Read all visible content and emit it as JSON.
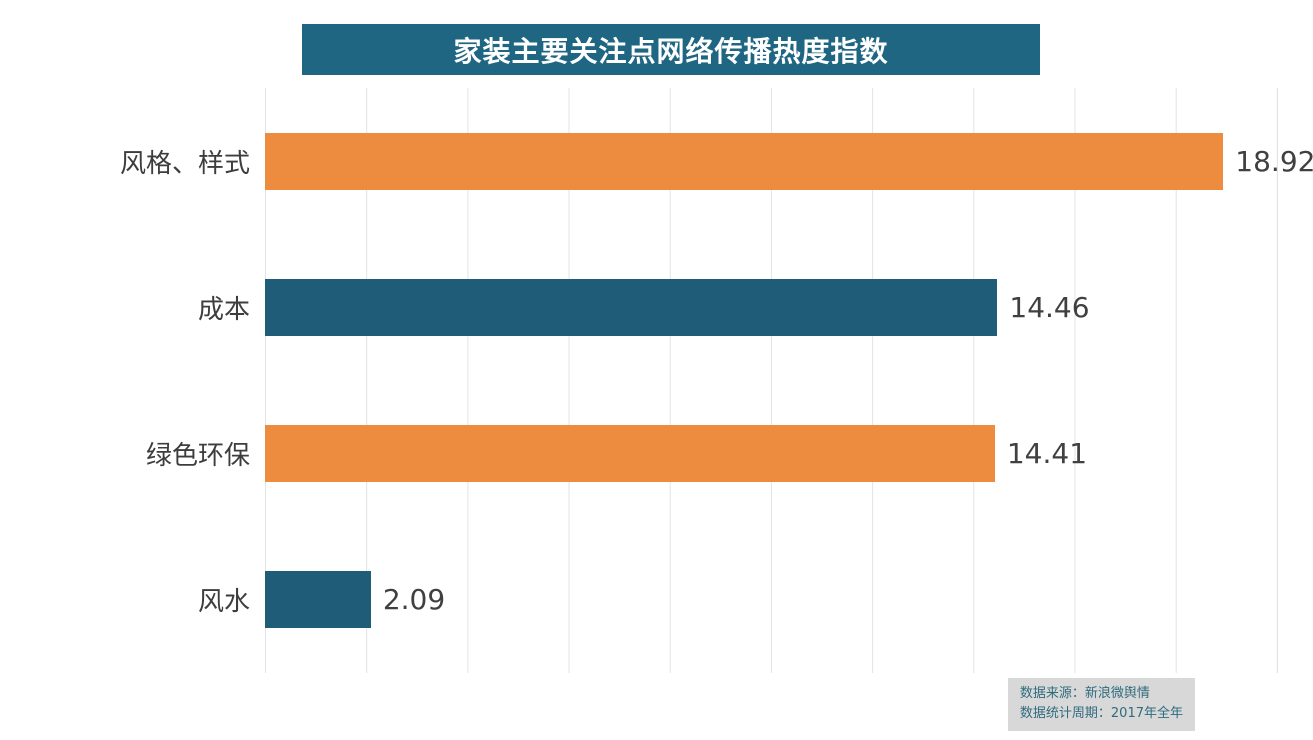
{
  "title": "家装主要关注点网络传播热度指数",
  "source": {
    "line1": "数据来源：新浪微舆情",
    "line2": "数据统计周期：2017年全年"
  },
  "colors": {
    "orange_bar": "#ED8B3F",
    "teal_bar": "#1F5C78",
    "title_bg": "#1F6682",
    "grid_line": "#E3E3E3",
    "source_bg": "#D8D8D8",
    "source_text": "#2F6B7E",
    "label_text": "#3D3D3D",
    "value_text": "#404040"
  },
  "chart_data": {
    "type": "bar",
    "orientation": "horizontal",
    "title": "家装主要关注点网络传播热度指数",
    "categories": [
      "风格、样式",
      "成本",
      "绿色环保",
      "风水"
    ],
    "values": [
      18.92,
      14.46,
      14.41,
      2.09
    ],
    "bar_colors": [
      "#ED8B3F",
      "#1F5C78",
      "#ED8B3F",
      "#1F5C78"
    ],
    "value_labels": [
      "18.92",
      "14.46",
      "14.41",
      "2.09"
    ],
    "xlabel": "",
    "ylabel": "",
    "xlim": [
      0,
      20
    ],
    "gridline_step": 2,
    "grid": true,
    "legend": false
  }
}
